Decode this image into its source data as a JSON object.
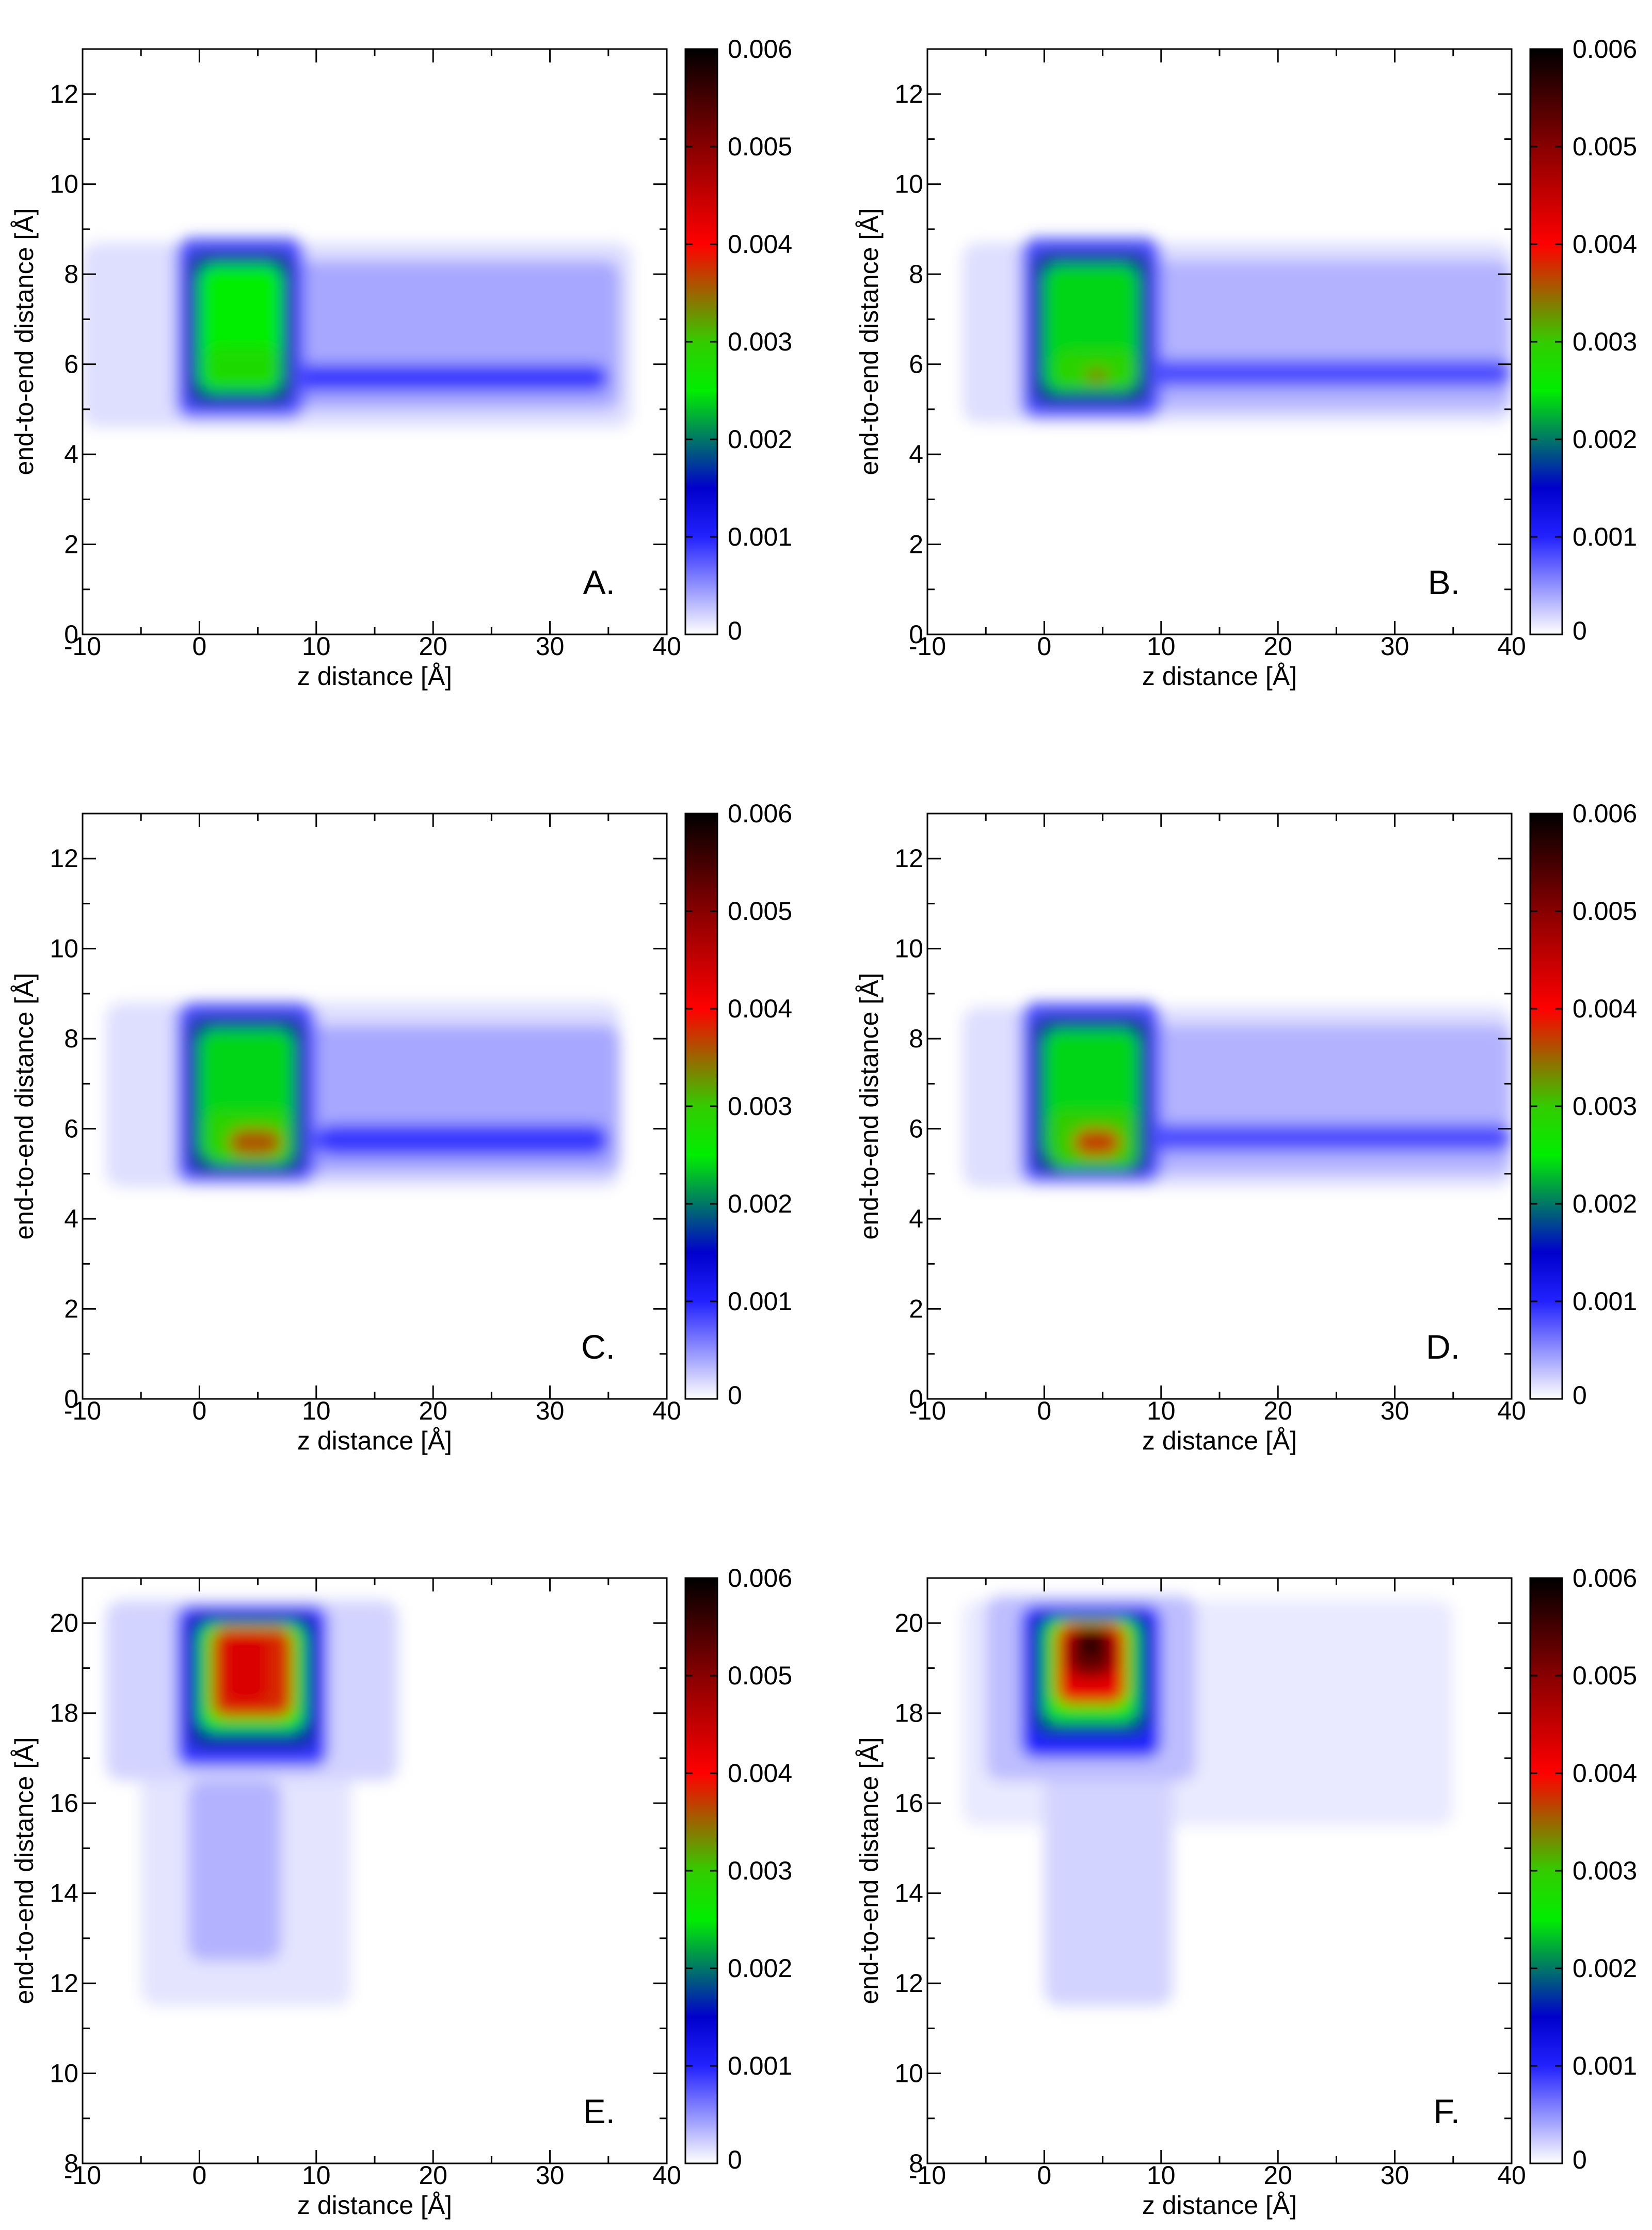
{
  "colorbar": {
    "ticks": [
      "0",
      "0.001",
      "0.002",
      "0.003",
      "0.004",
      "0.005",
      "0.006"
    ],
    "stops": [
      {
        "v": 0.0,
        "color": "#ffffff"
      },
      {
        "v": 0.001,
        "color": "#2222ff"
      },
      {
        "v": 0.0015,
        "color": "#0000cc"
      },
      {
        "v": 0.0025,
        "color": "#00ee00"
      },
      {
        "v": 0.003,
        "color": "#33cc00"
      },
      {
        "v": 0.004,
        "color": "#ff0000"
      },
      {
        "v": 0.005,
        "color": "#880000"
      },
      {
        "v": 0.006,
        "color": "#000000"
      }
    ]
  },
  "chart_data": [
    {
      "type": "heatmap",
      "panel_label": "A.",
      "xlabel": "z distance [Å]",
      "ylabel": "end-to-end distance [Å]",
      "xlim": [
        -10,
        40
      ],
      "ylim": [
        0,
        13
      ],
      "xticks": [
        "-10",
        "0",
        "10",
        "20",
        "30",
        "40"
      ],
      "yticks": [
        "0",
        "2",
        "4",
        "6",
        "8",
        "10",
        "12"
      ],
      "clim": [
        0,
        0.006
      ],
      "regions": [
        {
          "x": [
            -10,
            37
          ],
          "y": [
            4.6,
            8.7
          ],
          "value": 0.00015
        },
        {
          "x": [
            7,
            36
          ],
          "y": [
            5.0,
            8.3
          ],
          "value": 0.0004
        },
        {
          "x": [
            8,
            35
          ],
          "y": [
            5.4,
            6.0
          ],
          "value": 0.0009
        },
        {
          "x": [
            -2,
            9
          ],
          "y": [
            4.8,
            8.8
          ],
          "value": 0.0008
        },
        {
          "x": [
            -1,
            8
          ],
          "y": [
            5.1,
            8.5
          ],
          "value": 0.0018
        },
        {
          "x": [
            0,
            7
          ],
          "y": [
            5.4,
            8.2
          ],
          "value": 0.0025
        },
        {
          "x": [
            0.5,
            7
          ],
          "y": [
            5.5,
            6.4
          ],
          "value": 0.0028
        }
      ]
    },
    {
      "type": "heatmap",
      "panel_label": "B.",
      "xlabel": "z distance [Å]",
      "ylabel": "end-to-end distance [Å]",
      "xlim": [
        -10,
        40
      ],
      "ylim": [
        0,
        13
      ],
      "xticks": [
        "-10",
        "0",
        "10",
        "20",
        "30",
        "40"
      ],
      "yticks": [
        "0",
        "2",
        "4",
        "6",
        "8",
        "10",
        "12"
      ],
      "clim": [
        0,
        0.006
      ],
      "regions": [
        {
          "x": [
            -7,
            40
          ],
          "y": [
            4.7,
            8.7
          ],
          "value": 0.00015
        },
        {
          "x": [
            8,
            40
          ],
          "y": [
            5.0,
            8.3
          ],
          "value": 0.00035
        },
        {
          "x": [
            9,
            40
          ],
          "y": [
            5.5,
            6.1
          ],
          "value": 0.0008
        },
        {
          "x": [
            -2,
            10
          ],
          "y": [
            4.8,
            8.8
          ],
          "value": 0.0008
        },
        {
          "x": [
            -1,
            9
          ],
          "y": [
            5.1,
            8.5
          ],
          "value": 0.0018
        },
        {
          "x": [
            0,
            8
          ],
          "y": [
            5.4,
            8.2
          ],
          "value": 0.0024
        },
        {
          "x": [
            1,
            8
          ],
          "y": [
            5.4,
            6.3
          ],
          "value": 0.0029
        },
        {
          "x": [
            3.5,
            5.5
          ],
          "y": [
            5.6,
            5.9
          ],
          "value": 0.0034
        }
      ]
    },
    {
      "type": "heatmap",
      "panel_label": "C.",
      "xlabel": "z distance [Å]",
      "ylabel": "end-to-end distance [Å]",
      "xlim": [
        -10,
        40
      ],
      "ylim": [
        0,
        13
      ],
      "xticks": [
        "-10",
        "0",
        "10",
        "20",
        "30",
        "40"
      ],
      "yticks": [
        "0",
        "2",
        "4",
        "6",
        "8",
        "10",
        "12"
      ],
      "clim": [
        0,
        0.006
      ],
      "regions": [
        {
          "x": [
            -8,
            36
          ],
          "y": [
            4.7,
            8.8
          ],
          "value": 0.00015
        },
        {
          "x": [
            9,
            36
          ],
          "y": [
            5.0,
            8.3
          ],
          "value": 0.0004
        },
        {
          "x": [
            10,
            35
          ],
          "y": [
            5.4,
            6.1
          ],
          "value": 0.0009
        },
        {
          "x": [
            -2,
            10
          ],
          "y": [
            4.8,
            8.8
          ],
          "value": 0.0008
        },
        {
          "x": [
            -1,
            9
          ],
          "y": [
            5.0,
            8.5
          ],
          "value": 0.0018
        },
        {
          "x": [
            0,
            8
          ],
          "y": [
            5.3,
            8.2
          ],
          "value": 0.0024
        },
        {
          "x": [
            0.5,
            8
          ],
          "y": [
            5.2,
            6.4
          ],
          "value": 0.0029
        },
        {
          "x": [
            2.5,
            7
          ],
          "y": [
            5.4,
            6.0
          ],
          "value": 0.0036
        }
      ]
    },
    {
      "type": "heatmap",
      "panel_label": "D.",
      "xlabel": "z distance [Å]",
      "ylabel": "end-to-end distance [Å]",
      "xlim": [
        -10,
        40
      ],
      "ylim": [
        0,
        13
      ],
      "xticks": [
        "-10",
        "0",
        "10",
        "20",
        "30",
        "40"
      ],
      "yticks": [
        "0",
        "2",
        "4",
        "6",
        "8",
        "10",
        "12"
      ],
      "clim": [
        0,
        0.006
      ],
      "regions": [
        {
          "x": [
            -7,
            40
          ],
          "y": [
            4.7,
            8.7
          ],
          "value": 0.00015
        },
        {
          "x": [
            8,
            40
          ],
          "y": [
            5.0,
            8.3
          ],
          "value": 0.00035
        },
        {
          "x": [
            9,
            40
          ],
          "y": [
            5.5,
            6.1
          ],
          "value": 0.0008
        },
        {
          "x": [
            -2,
            10
          ],
          "y": [
            4.8,
            8.8
          ],
          "value": 0.0008
        },
        {
          "x": [
            -1,
            9
          ],
          "y": [
            5.0,
            8.5
          ],
          "value": 0.0018
        },
        {
          "x": [
            0,
            8
          ],
          "y": [
            5.3,
            8.2
          ],
          "value": 0.0024
        },
        {
          "x": [
            0.5,
            8
          ],
          "y": [
            5.1,
            6.4
          ],
          "value": 0.003
        },
        {
          "x": [
            2.5,
            6.5
          ],
          "y": [
            5.4,
            6.0
          ],
          "value": 0.0037
        }
      ]
    },
    {
      "type": "heatmap",
      "panel_label": "E.",
      "xlabel": "z distance [Å]",
      "ylabel": "end-to-end distance [Å]",
      "xlim": [
        -10,
        40
      ],
      "ylim": [
        8,
        21
      ],
      "xticks": [
        "-10",
        "0",
        "10",
        "20",
        "30",
        "40"
      ],
      "yticks": [
        "8",
        "10",
        "12",
        "14",
        "16",
        "18",
        "20"
      ],
      "clim": [
        0,
        0.006
      ],
      "regions": [
        {
          "x": [
            -5,
            13
          ],
          "y": [
            11.5,
            17.5
          ],
          "value": 0.00012
        },
        {
          "x": [
            -1,
            7
          ],
          "y": [
            12.5,
            16.5
          ],
          "value": 0.00035
        },
        {
          "x": [
            -8,
            17
          ],
          "y": [
            16.5,
            20.5
          ],
          "value": 0.0002
        },
        {
          "x": [
            -2,
            11
          ],
          "y": [
            16.8,
            20.4
          ],
          "value": 0.0009
        },
        {
          "x": [
            -1,
            10
          ],
          "y": [
            17.2,
            20.2
          ],
          "value": 0.0017
        },
        {
          "x": [
            0,
            9
          ],
          "y": [
            17.6,
            20.0
          ],
          "value": 0.0026
        },
        {
          "x": [
            1,
            8
          ],
          "y": [
            17.9,
            19.9
          ],
          "value": 0.0038
        },
        {
          "x": [
            2,
            6
          ],
          "y": [
            18.2,
            19.8
          ],
          "value": 0.0043
        }
      ]
    },
    {
      "type": "heatmap",
      "panel_label": "F.",
      "xlabel": "z distance [Å]",
      "ylabel": "end-to-end distance [Å]",
      "xlim": [
        -10,
        40
      ],
      "ylim": [
        8,
        21
      ],
      "xticks": [
        "-10",
        "0",
        "10",
        "20",
        "30",
        "40"
      ],
      "yticks": [
        "8",
        "10",
        "12",
        "14",
        "16",
        "18",
        "20"
      ],
      "clim": [
        0,
        0.006
      ],
      "regions": [
        {
          "x": [
            -7,
            35
          ],
          "y": [
            15.5,
            20.5
          ],
          "value": 0.0001
        },
        {
          "x": [
            0,
            11
          ],
          "y": [
            11.5,
            17.0
          ],
          "value": 0.0002
        },
        {
          "x": [
            -5,
            13
          ],
          "y": [
            16.5,
            20.6
          ],
          "value": 0.0003
        },
        {
          "x": [
            -2,
            10
          ],
          "y": [
            17.0,
            20.4
          ],
          "value": 0.001
        },
        {
          "x": [
            -1,
            9
          ],
          "y": [
            17.5,
            20.2
          ],
          "value": 0.0018
        },
        {
          "x": [
            0,
            8
          ],
          "y": [
            17.8,
            20.1
          ],
          "value": 0.0026
        },
        {
          "x": [
            1,
            7
          ],
          "y": [
            18.2,
            20.0
          ],
          "value": 0.0042
        },
        {
          "x": [
            2,
            6
          ],
          "y": [
            18.8,
            19.9
          ],
          "value": 0.0052
        },
        {
          "x": [
            3,
            5
          ],
          "y": [
            19.2,
            19.8
          ],
          "value": 0.0058
        }
      ]
    }
  ]
}
